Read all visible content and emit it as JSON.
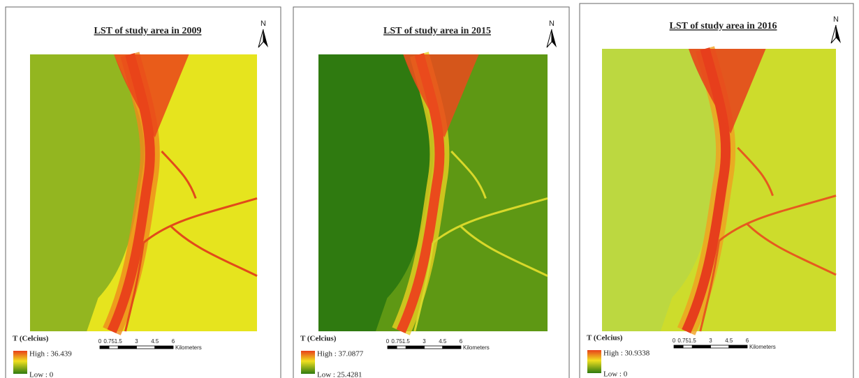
{
  "panels": [
    {
      "title": "LST of study area in 2009",
      "north": "N",
      "legend_title": "T (Celcius)",
      "high": "High : 36.439",
      "low": "Low : 0",
      "scale_ticks": [
        "0",
        "0.75",
        "1.5",
        "3",
        "4.5",
        "6"
      ],
      "scale_unit": "Kilometers"
    },
    {
      "title": "LST of study area in 2015",
      "north": "N",
      "legend_title": "T (Celcius)",
      "high": "High : 37.0877",
      "low": "Low : 25.4281",
      "scale_ticks": [
        "0",
        "0.75",
        "1.5",
        "3",
        "4.5",
        "6"
      ],
      "scale_unit": "Kilometers"
    },
    {
      "title": "LST of study area in 2016",
      "north": "N",
      "legend_title": "T (Celcius)",
      "high": "High : 30.9338",
      "low": "Low : 0",
      "scale_ticks": [
        "0",
        "0.75",
        "1.5",
        "3",
        "4.5",
        "6"
      ],
      "scale_unit": "Kilometers"
    }
  ]
}
